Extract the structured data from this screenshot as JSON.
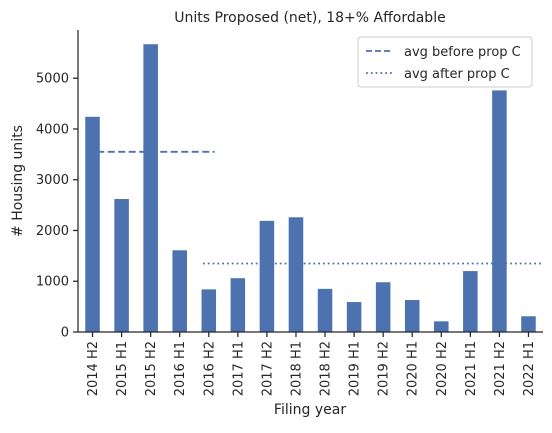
{
  "chart_data": {
    "type": "bar",
    "title": "Units Proposed (net), 18+% Affordable",
    "xlabel": "Filing year",
    "ylabel": "# Housing units",
    "ylim": [
      0,
      5950
    ],
    "yticks": [
      0,
      1000,
      2000,
      3000,
      4000,
      5000
    ],
    "grid": false,
    "legend_position": "top-right",
    "categories": [
      "2014 H2",
      "2015 H1",
      "2015 H2",
      "2016 H1",
      "2016 H2",
      "2017 H1",
      "2017 H2",
      "2018 H1",
      "2018 H2",
      "2019 H1",
      "2019 H2",
      "2020 H1",
      "2020 H2",
      "2021 H1",
      "2021 H2",
      "2022 H1"
    ],
    "series": [
      {
        "values": [
          4240,
          2620,
          5670,
          1610,
          840,
          1060,
          2190,
          2260,
          850,
          590,
          980,
          630,
          210,
          1200,
          4760,
          310
        ],
        "color": "#4c72b0"
      }
    ],
    "reference_lines": [
      {
        "name": "avg before prop C",
        "value": 3550,
        "from_category": "2014 H2",
        "to_category": "2016 H2",
        "style": "dashed",
        "color": "#4c72b0"
      },
      {
        "name": "avg after prop C",
        "value": 1350,
        "from_category": "2016 H2",
        "to_category": "2022 H1",
        "style": "dotted",
        "color": "#4c72b0"
      }
    ]
  }
}
